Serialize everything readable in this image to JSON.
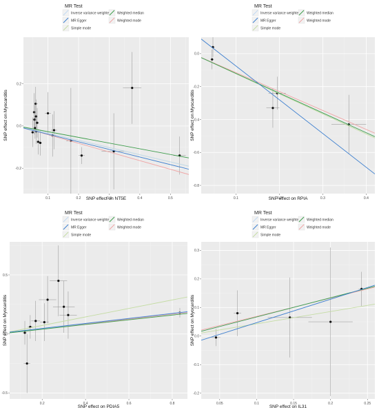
{
  "legend": {
    "title": "MR Test",
    "methods": [
      {
        "key": "ivw",
        "label": "Inverse variance weighted",
        "color": "#c1d9f2"
      },
      {
        "key": "egger",
        "label": "MR Egger",
        "color": "#3d7fcf"
      },
      {
        "key": "simple",
        "label": "Simple mode",
        "color": "#c4dca3"
      },
      {
        "key": "median",
        "label": "Weighted median",
        "color": "#3c9c4a"
      },
      {
        "key": "wmode",
        "label": "Weighted mode",
        "color": "#f0a4a4"
      }
    ]
  },
  "chart_data": [
    {
      "type": "scatter",
      "xlabel": "SNP effect on NT5E",
      "ylabel": "SNP effect on Myocarditis",
      "xlim": [
        0.02,
        0.56
      ],
      "ylim": [
        -0.32,
        0.42
      ],
      "xticks": [
        0.1,
        0.2,
        0.3,
        0.4,
        0.5
      ],
      "yticks": [
        -0.2,
        0.0,
        0.2
      ],
      "points": [
        {
          "x": 0.05,
          "y": -0.03,
          "xerr": 0.006,
          "yerr": 0.07
        },
        {
          "x": 0.055,
          "y": 0.065,
          "xerr": 0.006,
          "yerr": 0.09
        },
        {
          "x": 0.056,
          "y": 0.03,
          "xerr": 0.006,
          "yerr": 0.07
        },
        {
          "x": 0.058,
          "y": -0.01,
          "xerr": 0.006,
          "yerr": 0.05
        },
        {
          "x": 0.06,
          "y": 0.105,
          "xerr": 0.006,
          "yerr": 0.08
        },
        {
          "x": 0.061,
          "y": 0.045,
          "xerr": 0.006,
          "yerr": 0.08
        },
        {
          "x": 0.062,
          "y": -0.025,
          "xerr": 0.006,
          "yerr": 0.06
        },
        {
          "x": 0.065,
          "y": 0.015,
          "xerr": 0.006,
          "yerr": 0.07
        },
        {
          "x": 0.068,
          "y": -0.075,
          "xerr": 0.006,
          "yerr": 0.06
        },
        {
          "x": 0.075,
          "y": -0.08,
          "xerr": 0.006,
          "yerr": 0.06
        },
        {
          "x": 0.1,
          "y": 0.06,
          "xerr": 0.01,
          "yerr": 0.1
        },
        {
          "x": 0.115,
          "y": -0.045,
          "xerr": 0.01,
          "yerr": 0.1
        },
        {
          "x": 0.12,
          "y": -0.02,
          "xerr": 0.01,
          "yerr": 0.09
        },
        {
          "x": 0.175,
          "y": -0.07,
          "xerr": 0.015,
          "yerr": 0.25
        },
        {
          "x": 0.21,
          "y": -0.14,
          "xerr": 0.01,
          "yerr": 0.04
        },
        {
          "x": 0.315,
          "y": -0.12,
          "xerr": 0.04,
          "yerr": 0.18
        },
        {
          "x": 0.375,
          "y": 0.18,
          "xerr": 0.03,
          "yerr": 0.17
        },
        {
          "x": 0.53,
          "y": -0.14,
          "xerr": 0.02,
          "yerr": 0.09
        }
      ],
      "lines": [
        {
          "method": "ivw",
          "slope": -0.34,
          "intercept": 0.0
        },
        {
          "method": "egger",
          "slope": -0.36,
          "intercept": -0.003
        },
        {
          "method": "simple",
          "slope": -0.34,
          "intercept": 0.0
        },
        {
          "method": "median",
          "slope": -0.27,
          "intercept": 0.0
        },
        {
          "method": "wmode",
          "slope": -0.41,
          "intercept": 0.0
        }
      ]
    },
    {
      "type": "scatter",
      "xlabel": "SNP effect on RPIA",
      "ylabel": "SNP effect on Myocarditis",
      "xlim": [
        0.02,
        0.42
      ],
      "ylim": [
        -0.85,
        0.1
      ],
      "xticks": [
        0.1,
        0.2,
        0.3,
        0.4
      ],
      "yticks": [
        -0.8,
        -0.6,
        -0.4,
        -0.2,
        0.0
      ],
      "points": [
        {
          "x": 0.047,
          "y": 0.04,
          "xerr": 0.004,
          "yerr": 0.06
        },
        {
          "x": 0.045,
          "y": -0.035,
          "xerr": 0.004,
          "yerr": 0.06
        },
        {
          "x": 0.185,
          "y": -0.33,
          "xerr": 0.015,
          "yerr": 0.12
        },
        {
          "x": 0.195,
          "y": -0.24,
          "xerr": 0.02,
          "yerr": 0.1
        },
        {
          "x": 0.36,
          "y": -0.43,
          "xerr": 0.04,
          "yerr": 0.18
        }
      ],
      "lines": [
        {
          "method": "ivw",
          "slope": -1.2,
          "intercept": 0.0
        },
        {
          "method": "egger",
          "slope": -2.05,
          "intercept": 0.13
        },
        {
          "method": "simple",
          "slope": -1.22,
          "intercept": 0.0
        },
        {
          "method": "median",
          "slope": -1.2,
          "intercept": 0.0
        },
        {
          "method": "wmode",
          "slope": -1.15,
          "intercept": 0.0
        }
      ]
    },
    {
      "type": "scatter",
      "xlabel": "SNP effect on PDIA5",
      "ylabel": "SNP effect on Myocarditis",
      "xlim": [
        0.05,
        0.87
      ],
      "ylim": [
        -0.55,
        0.78
      ],
      "xticks": [
        0.2,
        0.4,
        0.6,
        0.8
      ],
      "yticks": [
        -0.5,
        0.0,
        0.5
      ],
      "points": [
        {
          "x": 0.12,
          "y": 0.01,
          "xerr": 0.01,
          "yerr": 0.1
        },
        {
          "x": 0.13,
          "y": -0.25,
          "xerr": 0.015,
          "yerr": 0.25
        },
        {
          "x": 0.145,
          "y": 0.06,
          "xerr": 0.012,
          "yerr": 0.1
        },
        {
          "x": 0.17,
          "y": 0.11,
          "xerr": 0.02,
          "yerr": 0.17
        },
        {
          "x": 0.21,
          "y": 0.1,
          "xerr": 0.02,
          "yerr": 0.16
        },
        {
          "x": 0.225,
          "y": 0.29,
          "xerr": 0.04,
          "yerr": 0.2
        },
        {
          "x": 0.275,
          "y": 0.45,
          "xerr": 0.04,
          "yerr": 0.3
        },
        {
          "x": 0.3,
          "y": 0.23,
          "xerr": 0.05,
          "yerr": 0.22
        },
        {
          "x": 0.32,
          "y": 0.16,
          "xerr": 0.04,
          "yerr": 0.2
        },
        {
          "x": 0.835,
          "y": 0.18,
          "xerr": 0.01,
          "yerr": 0.04
        }
      ],
      "lines": [
        {
          "method": "ivw",
          "slope": 0.22,
          "intercept": 0.0
        },
        {
          "method": "egger",
          "slope": 0.21,
          "intercept": 0.005
        },
        {
          "method": "simple",
          "slope": 0.36,
          "intercept": 0.0
        },
        {
          "method": "median",
          "slope": 0.2,
          "intercept": 0.0
        },
        {
          "method": "wmode",
          "slope": 0.21,
          "intercept": 0.0
        }
      ]
    },
    {
      "type": "scatter",
      "xlabel": "SNP effect on IL31",
      "ylabel": "SNP effect on Myocarditis",
      "xlim": [
        0.025,
        0.26
      ],
      "ylim": [
        -0.22,
        0.33
      ],
      "xticks": [
        0.05,
        0.1,
        0.15,
        0.2,
        0.25
      ],
      "yticks": [
        -0.2,
        -0.1,
        0.0,
        0.1,
        0.2,
        0.3
      ],
      "points": [
        {
          "x": 0.045,
          "y": -0.005,
          "xerr": 0.006,
          "yerr": 0.03
        },
        {
          "x": 0.074,
          "y": 0.08,
          "xerr": 0.005,
          "yerr": 0.08
        },
        {
          "x": 0.145,
          "y": 0.065,
          "xerr": 0.03,
          "yerr": 0.14
        },
        {
          "x": 0.2,
          "y": 0.05,
          "xerr": 0.03,
          "yerr": 0.26
        },
        {
          "x": 0.242,
          "y": 0.165,
          "xerr": 0.004,
          "yerr": 0.06
        }
      ],
      "lines": [
        {
          "method": "ivw",
          "slope": 0.67,
          "intercept": 0.0
        },
        {
          "method": "egger",
          "slope": 0.82,
          "intercept": -0.035
        },
        {
          "method": "simple",
          "slope": 0.43,
          "intercept": 0.0
        },
        {
          "method": "median",
          "slope": 0.67,
          "intercept": 0.0
        },
        {
          "method": "wmode",
          "slope": 0.64,
          "intercept": 0.005
        }
      ]
    }
  ]
}
